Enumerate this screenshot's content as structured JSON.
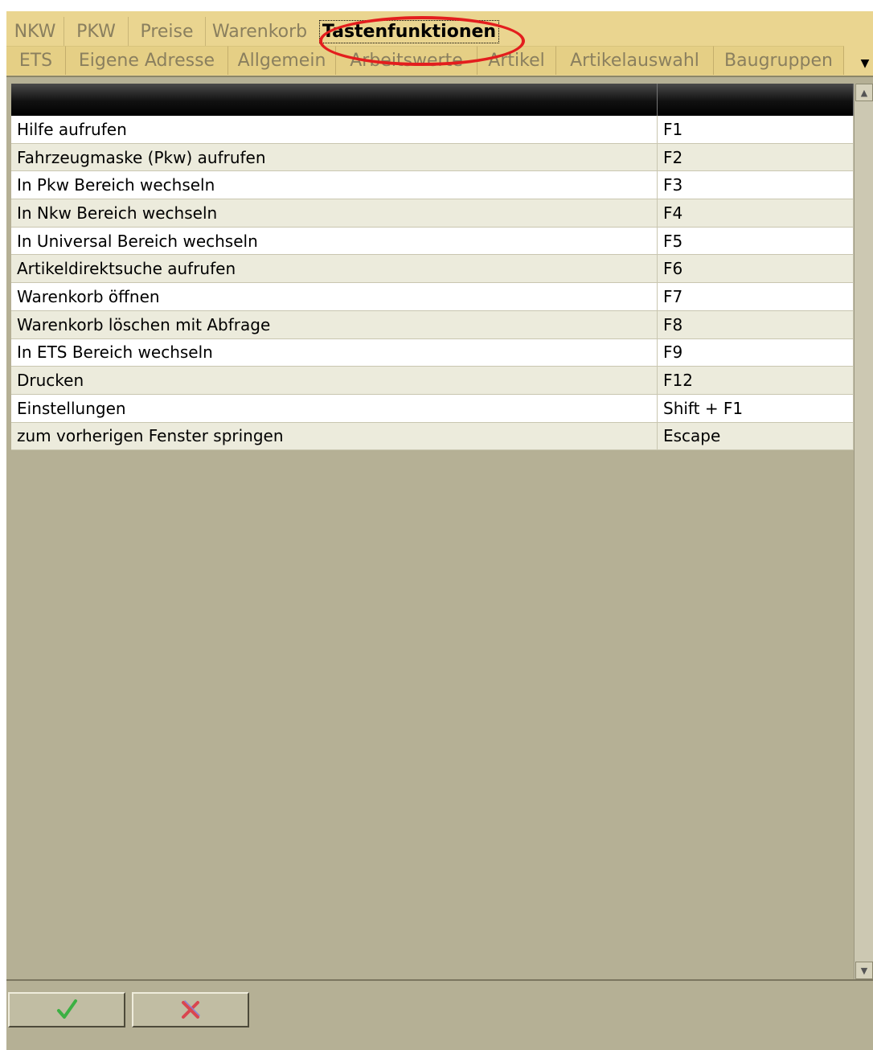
{
  "tabs": {
    "row1": [
      {
        "label": "NKW",
        "active": false
      },
      {
        "label": "PKW",
        "active": false
      },
      {
        "label": "Preise",
        "active": false
      },
      {
        "label": "Warenkorb",
        "active": false
      },
      {
        "label": "Tastenfunktionen",
        "active": true
      }
    ],
    "row2": [
      {
        "label": "ETS"
      },
      {
        "label": "Eigene Adresse"
      },
      {
        "label": "Allgemein"
      },
      {
        "label": "Arbeitswerte"
      },
      {
        "label": "Artikel"
      },
      {
        "label": "Artikelauswahl"
      },
      {
        "label": "Baugruppen"
      }
    ],
    "scroll_icon": "triangle-down-icon"
  },
  "grid": {
    "columns": [
      "",
      ""
    ],
    "rows": [
      {
        "function": "Hilfe aufrufen",
        "key": "F1"
      },
      {
        "function": "Fahrzeugmaske (Pkw) aufrufen",
        "key": "F2"
      },
      {
        "function": "In Pkw Bereich wechseln",
        "key": "F3"
      },
      {
        "function": "In Nkw Bereich wechseln",
        "key": "F4"
      },
      {
        "function": "In Universal Bereich wechseln",
        "key": "F5"
      },
      {
        "function": "Artikeldirektsuche aufrufen",
        "key": "F6"
      },
      {
        "function": "Warenkorb öffnen",
        "key": "F7"
      },
      {
        "function": "Warenkorb löschen mit Abfrage",
        "key": "F8"
      },
      {
        "function": "In ETS Bereich wechseln",
        "key": "F9"
      },
      {
        "function": "Drucken",
        "key": "F12"
      },
      {
        "function": "Einstellungen",
        "key": "Shift + F1"
      },
      {
        "function": "zum vorherigen Fenster springen",
        "key": "Escape"
      }
    ]
  },
  "footer": {
    "ok_icon": "checkmark-icon",
    "cancel_icon": "cross-icon"
  },
  "colors": {
    "tab_background": "#ead590",
    "panel_background": "#b5b095",
    "highlight_ring": "#e31e1e",
    "ok_green": "#3cb043",
    "cancel_red": "#d9464f"
  }
}
